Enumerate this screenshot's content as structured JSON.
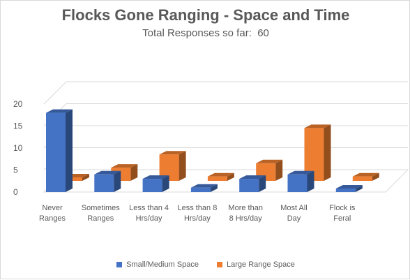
{
  "title": "Flocks Gone Ranging - Space and Time",
  "subtitle": "Total Responses so far:  60",
  "chart_data": {
    "type": "bar",
    "title": "Flocks Gone Ranging - Space and Time",
    "subtitle": "Total Responses so far:  60",
    "categories": [
      "Never Ranges",
      "Sometimes Ranges",
      "Less than 4 Hrs/day",
      "Less than 8 Hrs/day",
      "More than 8 Hrs/day",
      "Most All Day",
      "Flock is Feral"
    ],
    "category_lines": [
      [
        "Never",
        "Ranges"
      ],
      [
        "Sometimes",
        "Ranges"
      ],
      [
        "Less than 4",
        "Hrs/day"
      ],
      [
        "Less than 8",
        "Hrs/day"
      ],
      [
        "More than",
        "8 Hrs/day"
      ],
      [
        "Most All",
        "Day"
      ],
      [
        "Flock is",
        "Feral"
      ]
    ],
    "series": [
      {
        "name": "Small/Medium Space",
        "color": "#4472c4",
        "values": [
          18,
          4,
          3,
          1,
          3,
          4,
          0
        ]
      },
      {
        "name": "Large Range Space",
        "color": "#ed7d31",
        "values": [
          0,
          3,
          6,
          1,
          4,
          12,
          1
        ]
      }
    ],
    "yticks": [
      0,
      5,
      10,
      15,
      20
    ],
    "ylim": [
      0,
      20
    ],
    "grid": true,
    "legend_position": "bottom",
    "style": "3d-column"
  }
}
